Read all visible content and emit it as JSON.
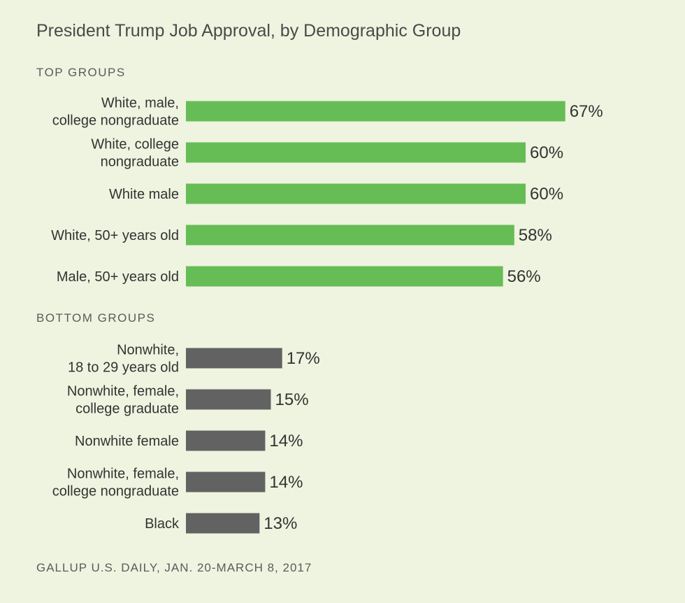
{
  "title": "President Trump Job Approval, by Demographic Group",
  "source": "GALLUP U.S. DAILY, JAN. 20-MARCH 8, 2017",
  "colors": {
    "top": "#66bd55",
    "bottom": "#626262",
    "background": "#eef4df"
  },
  "chart_data": [
    {
      "type": "bar",
      "orientation": "horizontal",
      "section": "TOP GROUPS",
      "color": "#66bd55",
      "unit": "%",
      "categories": [
        [
          "White, male,",
          "college nongraduate"
        ],
        [
          "White, college",
          "nongraduate"
        ],
        [
          "White male"
        ],
        [
          "White, 50+ years old"
        ],
        [
          "Male, 50+ years old"
        ]
      ],
      "values": [
        67,
        60,
        60,
        58,
        56
      ],
      "labels": [
        "67%",
        "60%",
        "60%",
        "58%",
        "56%"
      ]
    },
    {
      "type": "bar",
      "orientation": "horizontal",
      "section": "BOTTOM GROUPS",
      "color": "#626262",
      "unit": "%",
      "categories": [
        [
          "Nonwhite,",
          "18 to 29 years old"
        ],
        [
          "Nonwhite, female,",
          "college graduate"
        ],
        [
          "Nonwhite female"
        ],
        [
          "Nonwhite, female,",
          "college nongraduate"
        ],
        [
          "Black"
        ]
      ],
      "values": [
        17,
        15,
        14,
        14,
        13
      ],
      "labels": [
        "17%",
        "15%",
        "14%",
        "14%",
        "13%"
      ]
    }
  ]
}
